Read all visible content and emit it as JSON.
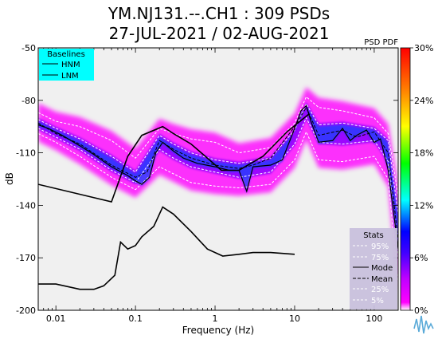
{
  "chart_data": {
    "type": "heatmap",
    "title": "YM.NJ131.--.CH1 : 309 PSDs",
    "subtitle": "27-JUL-2021 / 02-AUG-2021",
    "xlabel": "Frequency (Hz)",
    "ylabel": "dB",
    "x_scale": "log",
    "xlim": [
      0.006,
      200
    ],
    "ylim": [
      -200,
      -50
    ],
    "x_ticks": [
      "0.01",
      "0.1",
      "1",
      "10",
      "100"
    ],
    "y_ticks": [
      "-50",
      "-80",
      "-110",
      "-140",
      "-170",
      "-200"
    ],
    "colorbar": {
      "label": "PSD PDF",
      "ticks": [
        "0%",
        "6%",
        "12%",
        "18%",
        "24%",
        "30%"
      ],
      "range": [
        0,
        30
      ]
    },
    "baselines": {
      "title": "Baselines",
      "entries": [
        "HNM",
        "LNM"
      ]
    },
    "stats": {
      "title": "Stats",
      "entries": [
        "95%",
        "75%",
        "Mode",
        "Mean",
        "25%",
        "5%"
      ]
    },
    "series": [
      {
        "name": "HNM",
        "x": [
          0.006,
          0.05,
          0.08,
          0.12,
          0.22,
          0.3,
          0.5,
          1.2,
          2,
          4,
          8,
          15
        ],
        "y": [
          -128,
          -138,
          -112,
          -100,
          -95,
          -99,
          -105,
          -120,
          -120,
          -112,
          -98,
          -88
        ]
      },
      {
        "name": "LNM",
        "x": [
          0.006,
          0.01,
          0.02,
          0.03,
          0.04,
          0.055,
          0.065,
          0.08,
          0.1,
          0.12,
          0.17,
          0.22,
          0.3,
          0.5,
          0.8,
          1.25,
          2,
          3,
          5,
          10
        ],
        "y": [
          -185,
          -185,
          -188,
          -188,
          -186,
          -180,
          -161,
          -165,
          -163,
          -158,
          -152,
          -141,
          -145,
          -155,
          -165,
          -169,
          -168,
          -167,
          -167,
          -168
        ]
      },
      {
        "name": "Mode",
        "x": [
          0.006,
          0.008,
          0.012,
          0.02,
          0.03,
          0.05,
          0.08,
          0.1,
          0.12,
          0.15,
          0.18,
          0.22,
          0.3,
          0.4,
          0.6,
          1,
          1.5,
          2,
          2.5,
          3,
          5,
          7,
          10,
          12,
          14,
          16,
          20,
          30,
          40,
          50,
          60,
          80,
          100,
          120,
          150,
          200
        ],
        "y": [
          -94,
          -96,
          -100,
          -106,
          -111,
          -118,
          -123,
          -126,
          -128,
          -124,
          -110,
          -104,
          -109,
          -113,
          -116,
          -118,
          -120,
          -120,
          -132,
          -118,
          -117,
          -114,
          -96,
          -86,
          -83,
          -92,
          -104,
          -103,
          -96,
          -103,
          -100,
          -97,
          -104,
          -102,
          -120,
          -165
        ]
      },
      {
        "name": "Mean",
        "x": [
          0.006,
          0.01,
          0.02,
          0.05,
          0.1,
          0.14,
          0.2,
          0.3,
          0.5,
          1,
          2,
          3,
          5,
          10,
          14,
          20,
          40,
          60,
          100,
          150,
          200
        ],
        "y": [
          -93,
          -99,
          -105,
          -117,
          -124,
          -121,
          -103,
          -108,
          -113,
          -117,
          -119,
          -117,
          -113,
          -95,
          -84,
          -100,
          -97,
          -101,
          -98,
          -110,
          -160
        ]
      },
      {
        "name": "95%",
        "x": [
          0.006,
          0.01,
          0.02,
          0.05,
          0.1,
          0.2,
          0.3,
          0.5,
          1,
          2,
          5,
          10,
          14,
          20,
          40,
          100,
          150,
          200
        ],
        "y": [
          -87,
          -92,
          -95,
          -103,
          -113,
          -96,
          -99,
          -102,
          -104,
          -110,
          -107,
          -93,
          -78,
          -84,
          -86,
          -90,
          -99,
          -135
        ]
      },
      {
        "name": "75%",
        "x": [
          0.006,
          0.01,
          0.02,
          0.05,
          0.1,
          0.2,
          0.3,
          0.5,
          1,
          2,
          5,
          10,
          14,
          20,
          40,
          100,
          150,
          200
        ],
        "y": [
          -91,
          -96,
          -102,
          -112,
          -121,
          -100,
          -105,
          -110,
          -114,
          -116,
          -113,
          -97,
          -82,
          -94,
          -93,
          -96,
          -103,
          -145
        ]
      },
      {
        "name": "25%",
        "x": [
          0.006,
          0.01,
          0.02,
          0.05,
          0.1,
          0.2,
          0.3,
          0.5,
          1,
          2,
          5,
          10,
          14,
          20,
          40,
          100,
          150,
          200
        ],
        "y": [
          -96,
          -101,
          -108,
          -120,
          -127,
          -108,
          -113,
          -118,
          -121,
          -124,
          -121,
          -105,
          -90,
          -104,
          -105,
          -103,
          -115,
          -170
        ]
      },
      {
        "name": "5%",
        "x": [
          0.006,
          0.01,
          0.02,
          0.05,
          0.1,
          0.2,
          0.3,
          0.5,
          1,
          2,
          5,
          10,
          14,
          20,
          40,
          100,
          150,
          200
        ],
        "y": [
          -99,
          -104,
          -112,
          -124,
          -131,
          -118,
          -122,
          -127,
          -129,
          -130,
          -128,
          -114,
          -98,
          -114,
          -115,
          -112,
          -125,
          -185
        ]
      }
    ],
    "colors": {
      "background": "#f0f0f0",
      "baselines_box": "#00ffff",
      "stats_box": "#c8c0dc",
      "percentile_lines": "#ffffff",
      "mode_line": "#000000"
    }
  }
}
